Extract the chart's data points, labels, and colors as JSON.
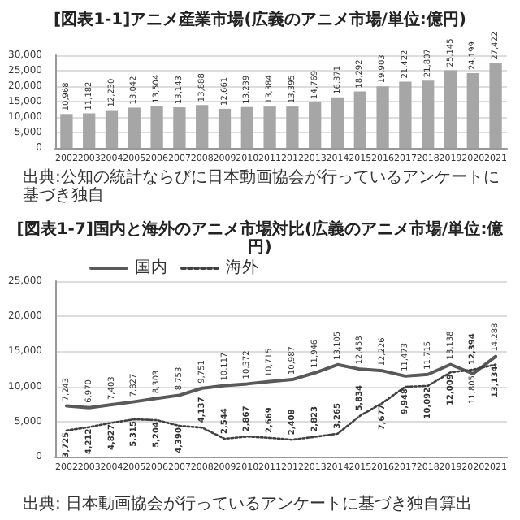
{
  "chart_data": [
    {
      "type": "bar",
      "title": "[図表1-1]アニメ産業市場(広義のアニメ市場/単位:億円)",
      "categories": [
        "2002",
        "2003",
        "2004",
        "2005",
        "2006",
        "2007",
        "2008",
        "2009",
        "2010",
        "2011",
        "2012",
        "2013",
        "2014",
        "2015",
        "2016",
        "2017",
        "2018",
        "2019",
        "2020",
        "2021"
      ],
      "values": [
        10968,
        11182,
        12230,
        13042,
        13504,
        13143,
        13888,
        12661,
        13239,
        13384,
        13395,
        14769,
        16371,
        18292,
        19903,
        21422,
        21807,
        25145,
        24199,
        27422
      ],
      "value_labels": [
        "10,968",
        "11,182",
        "12,230",
        "13,042",
        "13,504",
        "13,143",
        "13,888",
        "12,661",
        "13,239",
        "13,384",
        "13,395",
        "14,769",
        "16,371",
        "18,292",
        "19,903",
        "21,422",
        "21,807",
        "25,145",
        "24,199",
        "27,422"
      ],
      "color": "#a6a6a6",
      "ylim": [
        0,
        30000
      ],
      "yticks": [
        0,
        {
          "value": 5000,
          "label": "5,000"
        },
        {
          "value": 10000,
          "label": "10,000"
        },
        {
          "value": 15000,
          "label": "15,000"
        },
        {
          "value": 20000,
          "label": "20,000"
        },
        {
          "value": 25000,
          "label": "25,000"
        },
        {
          "value": 30000,
          "label": "30,000"
        }
      ],
      "grid": "y",
      "annotations": [
        "出典:公知の統計ならびに日本動画協会が行っているアンケートに基づき独自"
      ]
    },
    {
      "type": "line",
      "title": "[図表1-7]国内と海外のアニメ市場対比(広義のアニメ市場/単位:億円)",
      "categories": [
        "2002",
        "2003",
        "2004",
        "2005",
        "2006",
        "2007",
        "2008",
        "2009",
        "2010",
        "2011",
        "2012",
        "2013",
        "2014",
        "2015",
        "2016",
        "2017",
        "2018",
        "2019",
        "2020",
        "2021"
      ],
      "series": [
        {
          "name": "国内",
          "color": "#595959",
          "line_style": "solid",
          "values": [
            7243,
            6970,
            7403,
            7827,
            8303,
            8753,
            9751,
            10117,
            10372,
            10715,
            10987,
            11946,
            13105,
            12458,
            12226,
            11473,
            11715,
            13138,
            11805,
            14288
          ],
          "value_labels": [
            "7,243",
            "6,970",
            "7,403",
            "7,827",
            "8,303",
            "8,753",
            "9,751",
            "10,117",
            "10,372",
            "10,715",
            "10,987",
            "11,946",
            "13,105",
            "12,458",
            "12,226",
            "11,473",
            "11,715",
            "13,138",
            "11,805",
            "14,288"
          ]
        },
        {
          "name": "海外",
          "color": "#404040",
          "line_style": "dotted",
          "values": [
            3725,
            4212,
            4827,
            5315,
            5204,
            4390,
            4137,
            2544,
            2867,
            2669,
            2408,
            2823,
            3265,
            5834,
            7677,
            9948,
            10092,
            12009,
            12394,
            13134
          ],
          "value_labels": [
            "3,725",
            "4,212",
            "4,827",
            "5,315",
            "5,204",
            "4,390",
            "4,137",
            "2,544",
            "2,867",
            "2,669",
            "2,408",
            "2,823",
            "3,265",
            "5,834",
            "7,677",
            "9,948",
            "10,092",
            "12,009",
            "12,394",
            "13,134"
          ]
        }
      ],
      "ylim": [
        0,
        25000
      ],
      "yticks": [
        0,
        {
          "value": 5000,
          "label": "5,000"
        },
        {
          "value": 10000,
          "label": "10,000"
        },
        {
          "value": 15000,
          "label": "15,000"
        },
        {
          "value": 20000,
          "label": "20,000"
        },
        {
          "value": 25000,
          "label": "25,000"
        }
      ],
      "grid": "y",
      "legend": "top left",
      "marker": "none",
      "annotations": [
        "出典: 日本動画協会が行っているアンケートに基づき独自算出"
      ]
    }
  ]
}
